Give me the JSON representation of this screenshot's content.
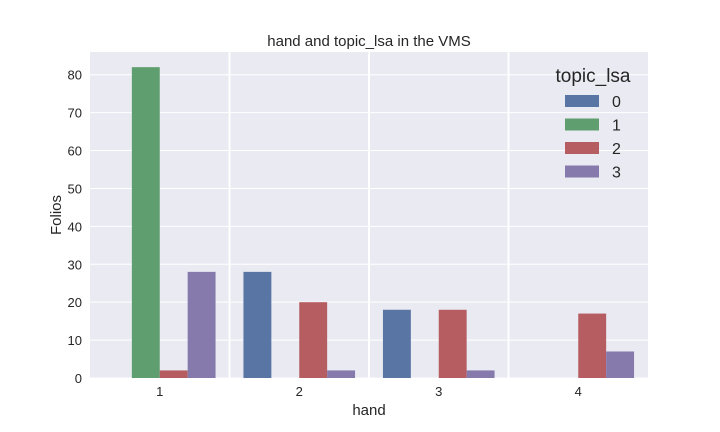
{
  "chart_data": {
    "type": "bar",
    "title": "hand and topic_lsa in the VMS",
    "xlabel": "hand",
    "ylabel": "Folios",
    "categories": [
      "1",
      "2",
      "3",
      "4"
    ],
    "yticks": [
      "0",
      "10",
      "20",
      "30",
      "40",
      "50",
      "60",
      "70",
      "80"
    ],
    "ylim": [
      0,
      86
    ],
    "grid": true,
    "legend": {
      "title": "topic_lsa",
      "placement": "top-right",
      "entries": [
        "0",
        "1",
        "2",
        "3"
      ]
    },
    "series": [
      {
        "name": "0",
        "color": "#5875a4",
        "values": [
          0,
          28,
          18,
          0
        ]
      },
      {
        "name": "1",
        "color": "#5f9e6e",
        "values": [
          82,
          0,
          0,
          0
        ]
      },
      {
        "name": "2",
        "color": "#b55d60",
        "values": [
          2,
          20,
          18,
          17
        ]
      },
      {
        "name": "3",
        "color": "#857aab",
        "values": [
          28,
          2,
          2,
          7
        ]
      }
    ]
  }
}
